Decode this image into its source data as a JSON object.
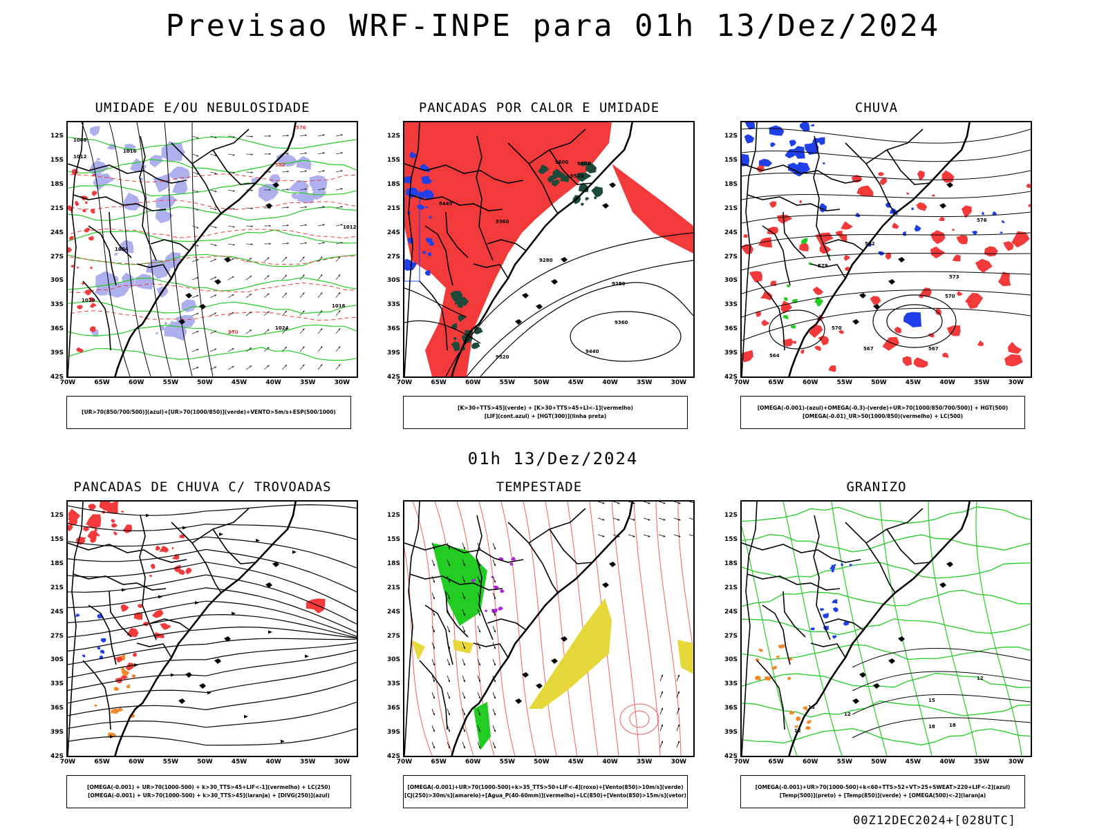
{
  "title": "Previsao WRF-INPE  para 01h 13/Dez/2024",
  "subtitle": "01h 13/Dez/2024",
  "footer": "00Z12DEC2024+[028UTC]",
  "lat_labels": [
    "12S",
    "15S",
    "18S",
    "21S",
    "24S",
    "27S",
    "30S",
    "33S",
    "36S",
    "39S",
    "42S"
  ],
  "lon_labels": [
    "70W",
    "65W",
    "60W",
    "55W",
    "50W",
    "45W",
    "40W",
    "35W",
    "30W"
  ],
  "colors": {
    "red": "#f23a3a",
    "green": "#22cc22",
    "lavender": "#aeb0ee",
    "blue": "#1f3fe8",
    "darkgreen": "#1e4a3a",
    "yellow": "#e6d83a",
    "orange": "#f08a28",
    "purple": "#b021e0"
  },
  "panels": [
    {
      "title": "UMIDADE E/OU NEBULOSIDADE",
      "legend_lines": [
        "[UR>70(850/700/500)](azul)+[UR>70(1000/850)](verde)+VENTO>5m/s+ESP(500/1000)"
      ],
      "contour_labels": [
        "1008",
        "1012",
        "1016",
        "1020",
        "1004",
        "1024",
        "570",
        "576",
        "582",
        "1012",
        "1016"
      ]
    },
    {
      "title": "PANCADAS POR CALOR E UMIDADE",
      "legend_lines": [
        "[K>30+TTS>45](verde)  +  [K>30+TTS>45+LI<-1](vermelho)",
        "[LIF](cont.azul)  +  [HGT(300)](linha preta)"
      ],
      "contour_labels": [
        "9600",
        "9600",
        "9520",
        "9440",
        "9360",
        "9280",
        "9280",
        "9360",
        "9440",
        "9520"
      ]
    },
    {
      "title": "CHUVA",
      "legend_lines": [
        "[OMEGA(-0.001)-(azul)+OMEGA(-0.3)-(verde)+UR>70(1000/850/700/500)]  +  HGT(500)",
        "[OMEGA(-0.01)_UR>50(1000/850)(vermelho)  +  LC(500)"
      ],
      "contour_labels": [
        "576",
        "573",
        "570",
        "567",
        "564",
        "582",
        "579",
        "570",
        "567"
      ]
    },
    {
      "title": "PANCADAS DE CHUVA C/ TROVOADAS",
      "legend_lines": [
        "[OMEGA(-0.001)  +  UR>70(1000-500)  +  k>30_TTS>45+LIF<-1](vermelho)  +  LC(250)",
        "[OMEGA(-0.001)  +  UR>70(1000-500)  +  k>30_TTS>45](laranja)  +  [DIVG(250)](azul)"
      ],
      "contour_labels": []
    },
    {
      "title": "TEMPESTADE",
      "legend_lines": [
        "[OMEGA(-0.001)+UR>70(1000-500)+k>35_TTS>50+LIF<-4](roxo)+[Vento(850)>10m/s](verde)",
        "[CJ(250)>30m/s](amarelo)+[Agua_P(40-60mm)](vermelho)+LC(850)+[Vento(850)>15m/s](vetor)"
      ],
      "contour_labels": []
    },
    {
      "title": "GRANIZO",
      "legend_lines": [
        "[OMEGA(-0.001)+UR>70(1000-500)+k<60+TTS>52+VT>25+SWEAT>220+LIF<-2](azul)",
        "[Temp(500)](preto)  +  [Temp(850)](verde)  +  [OMEGA(500)<-2](laranja)"
      ],
      "contour_labels": [
        "12",
        "12",
        "15",
        "18",
        "18",
        "15",
        "12"
      ]
    }
  ]
}
